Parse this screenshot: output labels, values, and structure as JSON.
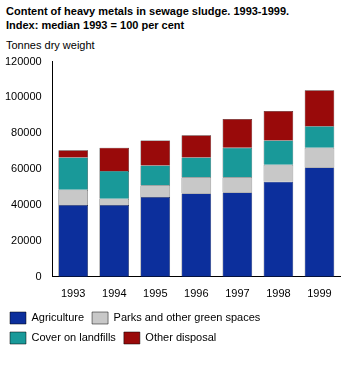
{
  "chart_data": {
    "type": "bar",
    "title": "Content of heavy metals in sewage sludge. 1993-1999.",
    "subtitle": "Index: median 1993 = 100 per cent",
    "y_label": "Tonnes dry weight",
    "categories": [
      "1993",
      "1994",
      "1995",
      "1996",
      "1997",
      "1998",
      "1999"
    ],
    "series": [
      {
        "name": "Agriculture",
        "color": "#0c2f9c",
        "values": [
          40000,
          40000,
          44500,
          46500,
          47000,
          53000,
          61000
        ]
      },
      {
        "name": "Parks and other green spaces",
        "color": "#c8c8c8",
        "values": [
          8500,
          3500,
          6500,
          9000,
          8500,
          9500,
          11000
        ]
      },
      {
        "name": "Cover on landfills",
        "color": "#199999",
        "values": [
          18000,
          15500,
          11000,
          11000,
          16500,
          13500,
          12000
        ]
      },
      {
        "name": "Other disposal",
        "color": "#990a0a",
        "values": [
          4000,
          13000,
          14000,
          12500,
          16000,
          16500,
          20000
        ]
      }
    ],
    "stacked": true,
    "ylim": [
      0,
      120000
    ],
    "yticks": [
      0,
      20000,
      40000,
      60000,
      80000,
      100000,
      120000
    ],
    "grid": false,
    "legend": "bottom"
  }
}
